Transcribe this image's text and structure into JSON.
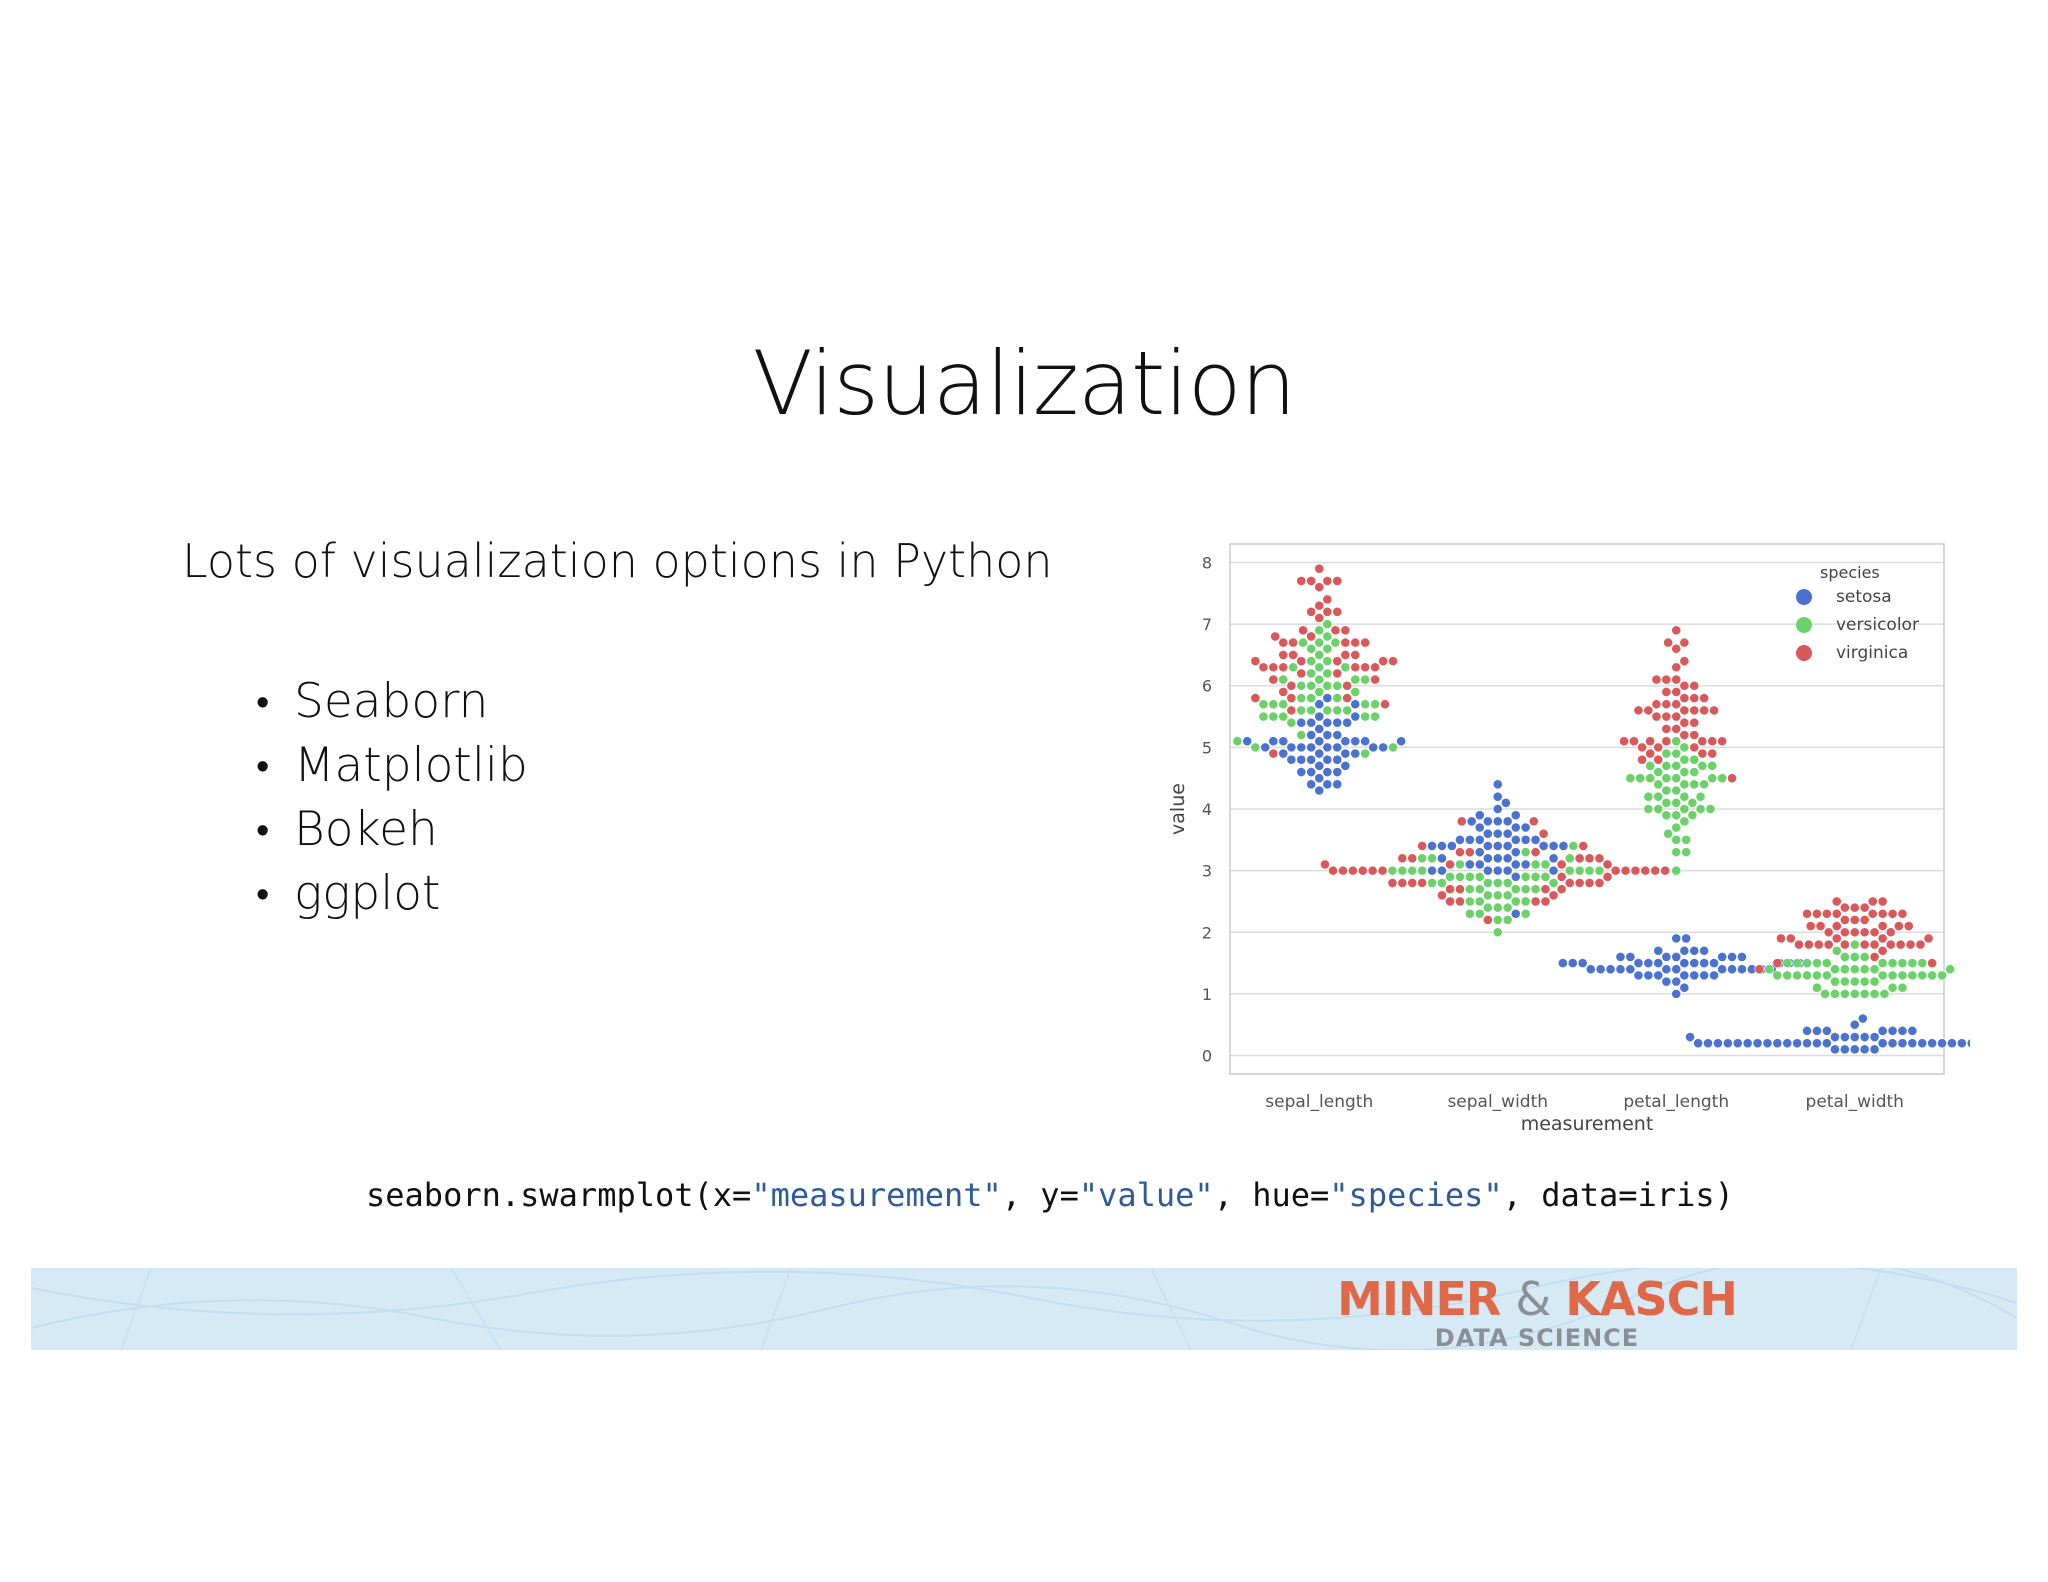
{
  "slide": {
    "title": "Visualization",
    "intro": "Lots of visualization options in Python",
    "bullets": [
      "Seaborn",
      "Matplotlib",
      "Bokeh",
      "ggplot"
    ]
  },
  "code": {
    "parts": [
      {
        "text": "seaborn.swarmplot(x=",
        "type": "plain"
      },
      {
        "text": "\"measurement\"",
        "type": "string"
      },
      {
        "text": ", y=",
        "type": "plain"
      },
      {
        "text": "\"value\"",
        "type": "string"
      },
      {
        "text": ", hue=",
        "type": "plain"
      },
      {
        "text": "\"species\"",
        "type": "string"
      },
      {
        "text": ", data=iris)",
        "type": "plain"
      }
    ]
  },
  "footer": {
    "brand_left": "MINER",
    "brand_amp": "&",
    "brand_right": "KASCH",
    "tagline": "DATA SCIENCE"
  },
  "colors": {
    "setosa": "#4c72d0",
    "versicolor": "#6bd26a",
    "virginica": "#d9585a",
    "brand": "#de6847",
    "banner": "#d6eaf6"
  },
  "chart_data": {
    "type": "swarm",
    "xlabel": "measurement",
    "ylabel": "value",
    "categories": [
      "sepal_length",
      "sepal_width",
      "petal_length",
      "petal_width"
    ],
    "yticks": [
      0,
      1,
      2,
      3,
      4,
      5,
      6,
      7,
      8
    ],
    "ylim": [
      -0.3,
      8.3
    ],
    "grid": "horizontal",
    "legend": {
      "title": "species",
      "position": "top-right",
      "entries": [
        "setosa",
        "versicolor",
        "virginica"
      ]
    },
    "series": [
      {
        "name": "setosa",
        "values": [
          [
            5.1,
            4.9,
            4.7,
            4.6,
            5.0,
            5.4,
            4.6,
            5.0,
            4.4,
            4.9,
            5.4,
            4.8,
            4.8,
            4.3,
            5.8,
            5.7,
            5.4,
            5.1,
            5.7,
            5.1,
            5.4,
            5.1,
            4.6,
            5.1,
            4.8,
            5.0,
            5.0,
            5.2,
            5.2,
            4.7,
            4.8,
            5.4,
            5.2,
            5.5,
            4.9,
            5.0,
            5.5,
            4.9,
            4.4,
            5.1,
            5.0,
            4.5,
            4.4,
            5.0,
            5.1,
            4.8,
            5.1,
            4.6,
            5.3,
            5.0
          ],
          [
            3.5,
            3.0,
            3.2,
            3.1,
            3.6,
            3.9,
            3.4,
            3.4,
            2.9,
            3.1,
            3.7,
            3.4,
            3.0,
            3.0,
            4.0,
            4.4,
            3.9,
            3.5,
            3.8,
            3.8,
            3.4,
            3.7,
            3.6,
            3.3,
            3.4,
            3.0,
            3.4,
            3.5,
            3.4,
            3.2,
            3.1,
            3.4,
            4.1,
            4.2,
            3.1,
            3.2,
            3.5,
            3.6,
            3.0,
            3.4,
            3.5,
            2.3,
            3.2,
            3.5,
            3.8,
            3.0,
            3.8,
            3.2,
            3.7,
            3.3
          ],
          [
            1.4,
            1.4,
            1.3,
            1.5,
            1.4,
            1.7,
            1.4,
            1.5,
            1.4,
            1.5,
            1.5,
            1.6,
            1.4,
            1.1,
            1.2,
            1.5,
            1.3,
            1.4,
            1.7,
            1.5,
            1.7,
            1.5,
            1.0,
            1.7,
            1.9,
            1.6,
            1.6,
            1.5,
            1.4,
            1.6,
            1.6,
            1.5,
            1.5,
            1.4,
            1.5,
            1.2,
            1.3,
            1.4,
            1.3,
            1.5,
            1.3,
            1.3,
            1.3,
            1.6,
            1.9,
            1.4,
            1.6,
            1.4,
            1.5,
            1.4
          ],
          [
            0.2,
            0.2,
            0.2,
            0.2,
            0.2,
            0.4,
            0.3,
            0.2,
            0.2,
            0.1,
            0.2,
            0.2,
            0.1,
            0.1,
            0.2,
            0.4,
            0.4,
            0.3,
            0.3,
            0.3,
            0.2,
            0.4,
            0.2,
            0.5,
            0.2,
            0.2,
            0.4,
            0.2,
            0.2,
            0.2,
            0.2,
            0.4,
            0.1,
            0.2,
            0.2,
            0.2,
            0.2,
            0.1,
            0.2,
            0.2,
            0.3,
            0.3,
            0.2,
            0.6,
            0.4,
            0.3,
            0.2,
            0.2,
            0.2,
            0.2
          ]
        ]
      },
      {
        "name": "versicolor",
        "values": [
          [
            7.0,
            6.4,
            6.9,
            5.5,
            6.5,
            5.7,
            6.3,
            4.9,
            6.6,
            5.2,
            5.0,
            5.9,
            6.0,
            6.1,
            5.6,
            6.7,
            5.6,
            5.8,
            6.2,
            5.6,
            5.9,
            6.1,
            6.3,
            6.1,
            6.4,
            6.6,
            6.8,
            6.7,
            6.0,
            5.7,
            5.5,
            5.5,
            5.8,
            6.0,
            5.4,
            6.0,
            6.7,
            6.3,
            5.6,
            5.5,
            5.5,
            6.1,
            5.8,
            5.0,
            5.6,
            5.7,
            5.7,
            6.2,
            5.1,
            5.7
          ],
          [
            3.2,
            3.2,
            3.1,
            2.3,
            2.8,
            2.8,
            3.3,
            2.4,
            2.9,
            2.7,
            2.0,
            3.0,
            2.2,
            2.9,
            2.9,
            3.1,
            3.0,
            2.7,
            2.2,
            2.5,
            3.2,
            2.8,
            2.5,
            2.8,
            2.9,
            3.0,
            2.8,
            3.0,
            2.9,
            2.6,
            2.4,
            2.4,
            2.7,
            2.7,
            3.0,
            3.4,
            3.1,
            2.3,
            3.0,
            2.5,
            2.6,
            3.0,
            2.6,
            2.3,
            2.7,
            3.0,
            2.9,
            2.9,
            2.5,
            2.8
          ],
          [
            4.7,
            4.5,
            4.9,
            4.0,
            4.6,
            4.5,
            4.7,
            3.3,
            4.6,
            3.9,
            3.5,
            4.2,
            4.0,
            4.7,
            3.6,
            4.4,
            4.5,
            4.1,
            4.5,
            3.9,
            4.8,
            4.0,
            4.9,
            4.7,
            4.3,
            4.4,
            4.8,
            5.0,
            4.5,
            3.5,
            3.8,
            3.7,
            3.9,
            5.1,
            4.5,
            4.5,
            4.7,
            4.4,
            4.1,
            4.0,
            4.4,
            4.6,
            4.0,
            3.3,
            4.2,
            4.2,
            4.2,
            4.3,
            3.0,
            4.1
          ],
          [
            1.4,
            1.5,
            1.5,
            1.3,
            1.5,
            1.3,
            1.6,
            1.0,
            1.3,
            1.4,
            1.0,
            1.5,
            1.0,
            1.4,
            1.3,
            1.4,
            1.5,
            1.0,
            1.5,
            1.1,
            1.8,
            1.3,
            1.5,
            1.2,
            1.3,
            1.4,
            1.4,
            1.7,
            1.5,
            1.0,
            1.1,
            1.0,
            1.2,
            1.6,
            1.5,
            1.6,
            1.5,
            1.3,
            1.3,
            1.3,
            1.2,
            1.4,
            1.2,
            1.0,
            1.3,
            1.2,
            1.3,
            1.3,
            1.1,
            1.3
          ]
        ]
      },
      {
        "name": "virginica",
        "values": [
          [
            6.3,
            5.8,
            7.1,
            6.3,
            6.5,
            7.6,
            4.9,
            7.3,
            6.7,
            7.2,
            6.5,
            6.4,
            6.8,
            5.7,
            5.8,
            6.4,
            6.5,
            7.7,
            7.7,
            6.0,
            6.9,
            5.6,
            7.7,
            6.3,
            6.7,
            7.2,
            6.2,
            6.1,
            6.4,
            7.2,
            7.4,
            7.9,
            6.4,
            6.3,
            6.1,
            7.7,
            6.3,
            6.4,
            6.0,
            6.9,
            6.7,
            6.9,
            5.8,
            6.8,
            6.7,
            6.7,
            6.3,
            6.5,
            6.2,
            5.9
          ],
          [
            3.3,
            2.7,
            3.0,
            2.9,
            3.0,
            3.0,
            2.5,
            2.9,
            2.5,
            3.6,
            3.2,
            2.7,
            3.0,
            2.5,
            2.8,
            3.2,
            3.0,
            3.8,
            2.6,
            2.2,
            3.2,
            2.8,
            2.8,
            2.7,
            3.3,
            3.2,
            2.8,
            3.0,
            2.8,
            3.0,
            2.8,
            3.8,
            2.8,
            2.8,
            2.6,
            3.0,
            3.4,
            3.1,
            3.0,
            3.1,
            3.1,
            3.1,
            2.7,
            3.2,
            3.3,
            3.0,
            2.5,
            3.0,
            3.4,
            3.0
          ],
          [
            6.0,
            5.1,
            5.9,
            5.6,
            5.8,
            6.6,
            4.5,
            6.3,
            5.8,
            6.1,
            5.1,
            5.3,
            5.5,
            5.0,
            5.1,
            5.3,
            5.5,
            6.7,
            6.9,
            5.0,
            5.7,
            4.9,
            6.7,
            4.9,
            5.7,
            6.0,
            4.8,
            4.9,
            5.6,
            5.8,
            6.1,
            6.4,
            5.6,
            5.1,
            5.6,
            6.1,
            5.6,
            5.5,
            4.8,
            5.4,
            5.6,
            5.1,
            5.1,
            5.9,
            5.7,
            5.2,
            5.0,
            5.2,
            5.4,
            5.1
          ],
          [
            2.5,
            1.9,
            2.1,
            1.8,
            2.2,
            2.1,
            1.7,
            1.8,
            1.8,
            2.5,
            2.0,
            1.9,
            2.1,
            2.0,
            2.4,
            2.3,
            1.8,
            2.2,
            2.3,
            1.5,
            2.3,
            2.0,
            2.0,
            1.8,
            2.1,
            1.8,
            1.8,
            1.8,
            2.1,
            1.6,
            1.9,
            2.0,
            2.2,
            1.5,
            1.4,
            2.3,
            2.4,
            1.8,
            1.8,
            2.1,
            2.4,
            2.3,
            1.9,
            2.3,
            2.5,
            2.3,
            1.9,
            2.0,
            2.3,
            1.8
          ]
        ]
      }
    ]
  }
}
